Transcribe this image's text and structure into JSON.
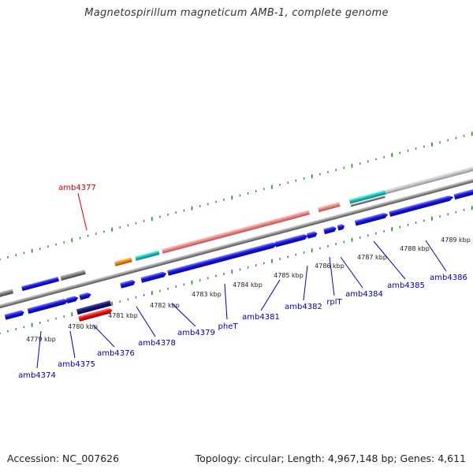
{
  "title": "Magnetospirillum magneticum AMB-1, complete genome",
  "footer": {
    "accession": "Accession: NC_007626",
    "summary": "Topology: circular; Length: 4,967,148 bp; Genes: 4,611"
  },
  "colors": {
    "forward_cds": "#1010e0",
    "reverse_cds": "#ee1111",
    "pseudo_dark": "#101070",
    "rrna": "#f08888",
    "trna": "#20c8c8",
    "misc": "#f08a10",
    "grey_feature": "#808080",
    "light_grey_feature": "#c8c8c8",
    "ruler_tick": "#228822",
    "label_red": "#cc0000",
    "label_blue": "#0000aa"
  },
  "ruler_labels": [
    "4779 kbp",
    "4780 kbp",
    "4781 kbp",
    "4782 kbp",
    "4783 kbp",
    "4784 kbp",
    "4785 kbp",
    "4786 kbp",
    "4787 kbp",
    "4788 kbp",
    "4789 kbp"
  ],
  "gene_labels": [
    {
      "text": "amb4377",
      "color": "red"
    },
    {
      "text": "amb4374",
      "color": "blue"
    },
    {
      "text": "amb4375",
      "color": "blue"
    },
    {
      "text": "amb4376",
      "color": "blue"
    },
    {
      "text": "amb4378",
      "color": "blue"
    },
    {
      "text": "amb4379",
      "color": "blue"
    },
    {
      "text": "pheT",
      "color": "blue"
    },
    {
      "text": "amb4381",
      "color": "blue"
    },
    {
      "text": "amb4382",
      "color": "blue"
    },
    {
      "text": "rplT",
      "color": "blue"
    },
    {
      "text": "amb4384",
      "color": "blue"
    },
    {
      "text": "amb4385",
      "color": "blue"
    },
    {
      "text": "amb4386",
      "color": "blue"
    }
  ]
}
